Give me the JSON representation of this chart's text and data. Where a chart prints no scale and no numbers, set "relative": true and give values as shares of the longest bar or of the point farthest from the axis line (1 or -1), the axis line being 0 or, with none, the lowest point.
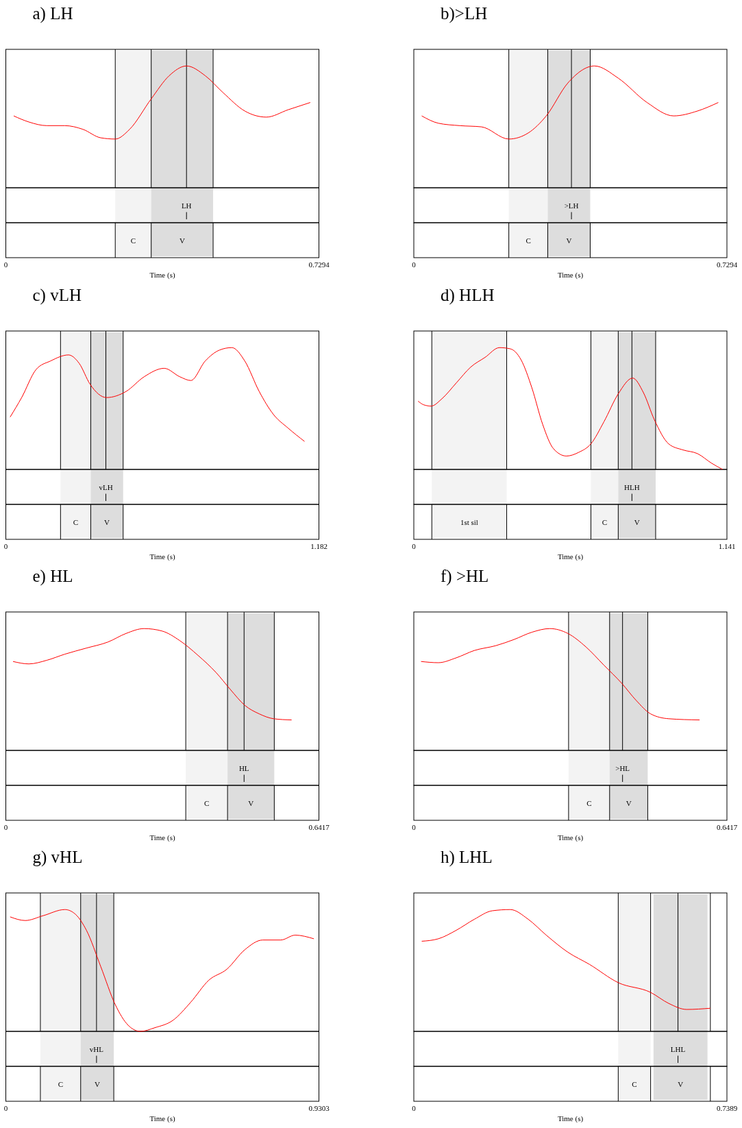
{
  "chart_data": [
    {
      "type": "line",
      "title": "a) LH",
      "xlabel": "Time (s)",
      "relative": true,
      "xlim": [
        0,
        0.7294
      ],
      "xticks": [
        0,
        0.7294
      ],
      "series": [
        {
          "color": "#ff0000",
          "x": [
            0.0184,
            0.0537,
            0.0956,
            0.1375,
            0.1794,
            0.2213,
            0.2549,
            0.2884,
            0.3387,
            0.3806,
            0.4209,
            0.4645,
            0.5064,
            0.5567,
            0.607,
            0.6573,
            0.7093
          ],
          "values": [
            0.59,
            0.54,
            0.51,
            0.51,
            0.48,
            0.41,
            0.4,
            0.48,
            0.73,
            0.92,
            1,
            0.92,
            0.78,
            0.63,
            0.58,
            0.64,
            0.7
          ]
        }
      ],
      "bands": [
        {
          "axis": "x",
          "from": 0.2549,
          "to": 0.3387,
          "label": "C",
          "color": "#f3f3f3"
        },
        {
          "axis": "x",
          "from": 0.3387,
          "to": 0.4829,
          "label": "V",
          "color": "#dddddd"
        }
      ],
      "ref_lines": [
        {
          "axis": "x",
          "value": 0.2549
        },
        {
          "axis": "x",
          "value": 0.3387
        },
        {
          "axis": "x",
          "value": 0.4829
        },
        {
          "axis": "x",
          "value": 0.4209,
          "label": "LH"
        }
      ]
    },
    {
      "type": "line",
      "title": "b)>LH",
      "xlabel": "Time (s)",
      "relative": true,
      "xlim": [
        0,
        0.7294
      ],
      "xticks": [
        0,
        0.7294
      ],
      "series": [
        {
          "color": "#ff0000",
          "x": [
            0.0184,
            0.057,
            0.1073,
            0.1576,
            0.2213,
            0.2666,
            0.3085,
            0.3588,
            0.4209,
            0.4762,
            0.5433,
            0.6053,
            0.6607,
            0.7093
          ],
          "values": [
            0.59,
            0.53,
            0.51,
            0.5,
            0.4,
            0.45,
            0.59,
            0.86,
            1,
            0.9,
            0.7,
            0.59,
            0.63,
            0.7
          ]
        }
      ],
      "bands": [
        {
          "axis": "x",
          "from": 0.2213,
          "to": 0.312,
          "label": "C",
          "color": "#f3f3f3"
        },
        {
          "axis": "x",
          "from": 0.312,
          "to": 0.4109,
          "label": "V",
          "color": "#dddddd"
        }
      ],
      "ref_lines": [
        {
          "axis": "x",
          "value": 0.2213
        },
        {
          "axis": "x",
          "value": 0.312
        },
        {
          "axis": "x",
          "value": 0.4109
        },
        {
          "axis": "x",
          "value": 0.3672,
          "label": ">LH"
        }
      ]
    },
    {
      "type": "line",
      "title": "c) vLH",
      "xlabel": "Time (s)",
      "relative": true,
      "xlim": [
        0,
        1.182
      ],
      "xticks": [
        0,
        1.182
      ],
      "series": [
        {
          "color": "#ff0000",
          "x": [
            0.0163,
            0.0598,
            0.1141,
            0.1685,
            0.2364,
            0.2772,
            0.3179,
            0.3804,
            0.4538,
            0.5217,
            0.5978,
            0.6576,
            0.6984,
            0.7527,
            0.807,
            0.8532,
            0.9021,
            0.9565,
            1.0108,
            1.0652,
            1.1277
          ],
          "values": [
            0.43,
            0.59,
            0.82,
            0.89,
            0.94,
            0.87,
            0.7,
            0.59,
            0.64,
            0.76,
            0.83,
            0.76,
            0.73,
            0.89,
            0.98,
            1,
            0.89,
            0.64,
            0.45,
            0.34,
            0.23
          ]
        }
      ],
      "bands": [
        {
          "axis": "x",
          "from": 0.2065,
          "to": 0.3206,
          "label": "C",
          "color": "#f3f3f3"
        },
        {
          "axis": "x",
          "from": 0.3206,
          "to": 0.4429,
          "label": "V",
          "color": "#dddddd"
        }
      ],
      "ref_lines": [
        {
          "axis": "x",
          "value": 0.2065
        },
        {
          "axis": "x",
          "value": 0.3206
        },
        {
          "axis": "x",
          "value": 0.4429
        },
        {
          "axis": "x",
          "value": 0.3777,
          "label": "vLH"
        }
      ]
    },
    {
      "type": "line",
      "title": "d) HLH",
      "xlabel": "Time (s)",
      "relative": true,
      "xlim": [
        0,
        1.141
      ],
      "xticks": [
        0,
        1.141
      ],
      "series": [
        {
          "color": "#ff0000",
          "x": [
            0.0157,
            0.0367,
            0.063,
            0.1023,
            0.1548,
            0.2072,
            0.2597,
            0.3121,
            0.3515,
            0.3908,
            0.4302,
            0.4695,
            0.5089,
            0.5561,
            0.6007,
            0.6453,
            0.6925,
            0.7449,
            0.7974,
            0.8368,
            0.8761,
            0.9286,
            0.981,
            1.0335,
            1.0859,
            1.1253
          ],
          "values": [
            0.56,
            0.53,
            0.52,
            0.58,
            0.71,
            0.84,
            0.92,
            1,
            0.99,
            0.9,
            0.67,
            0.37,
            0.17,
            0.11,
            0.14,
            0.21,
            0.39,
            0.62,
            0.75,
            0.63,
            0.41,
            0.21,
            0.16,
            0.13,
            0.05,
            0
          ]
        }
      ],
      "bands": [
        {
          "axis": "x",
          "from": 0.0656,
          "to": 0.3384,
          "label": "1st sil",
          "color": "#f3f3f3"
        },
        {
          "axis": "x",
          "from": 0.6453,
          "to": 0.7449,
          "label": "C",
          "color": "#f3f3f3"
        },
        {
          "axis": "x",
          "from": 0.7449,
          "to": 0.8813,
          "label": "V",
          "color": "#dddddd"
        }
      ],
      "ref_lines": [
        {
          "axis": "x",
          "value": 0.0656
        },
        {
          "axis": "x",
          "value": 0.3384
        },
        {
          "axis": "x",
          "value": 0.6453
        },
        {
          "axis": "x",
          "value": 0.7449
        },
        {
          "axis": "x",
          "value": 0.8813
        },
        {
          "axis": "x",
          "value": 0.7948,
          "label": "HLH"
        }
      ]
    },
    {
      "type": "line",
      "title": "e) HL",
      "xlabel": "Time (s)",
      "relative": true,
      "xlim": [
        0,
        0.6417
      ],
      "xticks": [
        0,
        0.6417
      ],
      "series": [
        {
          "color": "#ff0000",
          "x": [
            0.0148,
            0.0472,
            0.0841,
            0.121,
            0.1652,
            0.2095,
            0.2464,
            0.2832,
            0.3201,
            0.357,
            0.3939,
            0.4307,
            0.4602,
            0.4898,
            0.5193,
            0.5488,
            0.5857
          ],
          "values": [
            0.73,
            0.71,
            0.74,
            0.79,
            0.84,
            0.89,
            0.96,
            1,
            0.98,
            0.9,
            0.78,
            0.64,
            0.5,
            0.37,
            0.3,
            0.26,
            0.25
          ]
        }
      ],
      "bands": [
        {
          "axis": "x",
          "from": 0.3688,
          "to": 0.4544,
          "label": "C",
          "color": "#f3f3f3"
        },
        {
          "axis": "x",
          "from": 0.4544,
          "to": 0.5502,
          "label": "V",
          "color": "#dddddd"
        }
      ],
      "ref_lines": [
        {
          "axis": "x",
          "value": 0.3688
        },
        {
          "axis": "x",
          "value": 0.4544
        },
        {
          "axis": "x",
          "value": 0.5502
        },
        {
          "axis": "x",
          "value": 0.4883,
          "label": "HL"
        }
      ]
    },
    {
      "type": "line",
      "title": "f) >HL",
      "xlabel": "Time (s)",
      "relative": true,
      "xlim": [
        0,
        0.6417
      ],
      "xticks": [
        0,
        0.6417
      ],
      "series": [
        {
          "color": "#ff0000",
          "x": [
            0.0148,
            0.0502,
            0.087,
            0.1239,
            0.1682,
            0.2051,
            0.2419,
            0.2788,
            0.3157,
            0.3526,
            0.3895,
            0.4263,
            0.4558,
            0.4853,
            0.5222,
            0.5857
          ],
          "values": [
            0.73,
            0.72,
            0.76,
            0.82,
            0.86,
            0.91,
            0.97,
            1,
            0.96,
            0.85,
            0.7,
            0.55,
            0.41,
            0.3,
            0.26,
            0.25
          ]
        }
      ],
      "bands": [
        {
          "axis": "x",
          "from": 0.3172,
          "to": 0.4013,
          "label": "C",
          "color": "#f3f3f3"
        },
        {
          "axis": "x",
          "from": 0.4013,
          "to": 0.4794,
          "label": "V",
          "color": "#dddddd"
        }
      ],
      "ref_lines": [
        {
          "axis": "x",
          "value": 0.3172
        },
        {
          "axis": "x",
          "value": 0.4013
        },
        {
          "axis": "x",
          "value": 0.4794
        },
        {
          "axis": "x",
          "value": 0.4278,
          "label": ">HL"
        }
      ]
    },
    {
      "type": "line",
      "title": "g) vHL",
      "xlabel": "Time (s)",
      "relative": true,
      "xlim": [
        0,
        0.9303
      ],
      "xticks": [
        0,
        0.9303
      ],
      "series": [
        {
          "color": "#ff0000",
          "x": [
            0.0128,
            0.0577,
            0.1112,
            0.1754,
            0.2074,
            0.2395,
            0.2823,
            0.3251,
            0.3636,
            0.4,
            0.4427,
            0.4962,
            0.5496,
            0.6031,
            0.6566,
            0.71,
            0.7635,
            0.817,
            0.8597,
            0.9153
          ],
          "values": [
            0.94,
            0.91,
            0.95,
            1,
            0.96,
            0.83,
            0.53,
            0.22,
            0.05,
            0,
            0.03,
            0.09,
            0.24,
            0.42,
            0.51,
            0.67,
            0.75,
            0.75,
            0.79,
            0.76
          ]
        }
      ],
      "bands": [
        {
          "axis": "x",
          "from": 0.1027,
          "to": 0.2224,
          "label": "C",
          "color": "#f3f3f3"
        },
        {
          "axis": "x",
          "from": 0.2224,
          "to": 0.3208,
          "label": "V",
          "color": "#dddddd"
        }
      ],
      "ref_lines": [
        {
          "axis": "x",
          "value": 0.1027
        },
        {
          "axis": "x",
          "value": 0.2224
        },
        {
          "axis": "x",
          "value": 0.3208
        },
        {
          "axis": "x",
          "value": 0.2695,
          "label": "vHL"
        }
      ]
    },
    {
      "type": "line",
      "title": "h) LHL",
      "xlabel": "Time (s)",
      "relative": true,
      "xlim": [
        0,
        0.7389
      ],
      "xticks": [
        0,
        0.7389
      ],
      "series": [
        {
          "color": "#ff0000",
          "x": [
            0.0187,
            0.0578,
            0.1002,
            0.1427,
            0.1851,
            0.2276,
            0.2701,
            0.3125,
            0.3635,
            0.4145,
            0.4824,
            0.5588,
            0.6013,
            0.6438,
            0.6998
          ],
          "values": [
            0.74,
            0.76,
            0.83,
            0.92,
            0.99,
            1,
            0.92,
            0.79,
            0.65,
            0.55,
            0.4,
            0.32,
            0.23,
            0.18,
            0.19
          ]
        }
      ],
      "bands": [
        {
          "axis": "x",
          "from": 0.4824,
          "to": 0.5588,
          "label": "C",
          "color": "#f3f3f3"
        },
        {
          "axis": "x",
          "from": 0.5656,
          "to": 0.693,
          "label": "V",
          "color": "#dddddd"
        }
      ],
      "ref_lines": [
        {
          "axis": "x",
          "value": 0.4824
        },
        {
          "axis": "x",
          "value": 0.5588
        },
        {
          "axis": "x",
          "value": 0.6998
        },
        {
          "axis": "x",
          "value": 0.6234,
          "label": "LHL"
        }
      ]
    }
  ]
}
